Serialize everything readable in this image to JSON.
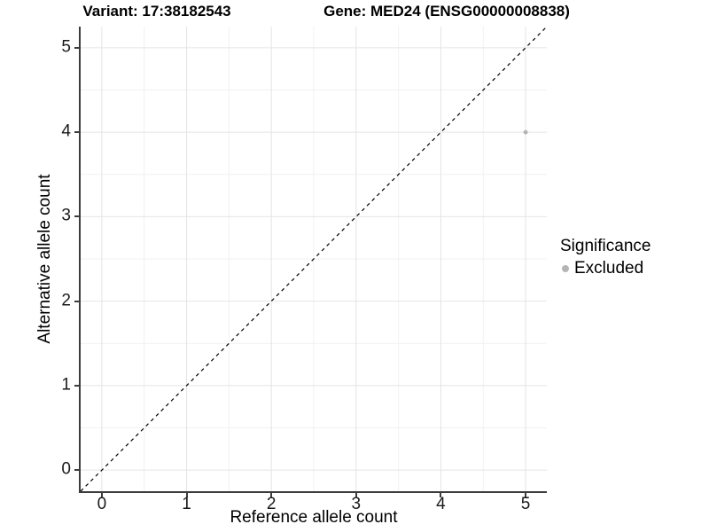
{
  "titles": {
    "variant": "Variant: 17:38182543",
    "gene": "Gene: MED24 (ENSG00000008838)"
  },
  "axes": {
    "x": {
      "label": "Reference allele count",
      "ticks": [
        0,
        1,
        2,
        3,
        4,
        5
      ],
      "range": [
        -0.25,
        5.25
      ]
    },
    "y": {
      "label": "Alternative allele count",
      "ticks": [
        0,
        1,
        2,
        3,
        4,
        5
      ],
      "range": [
        -0.25,
        5.25
      ]
    }
  },
  "legend": {
    "title": "Significance",
    "items": [
      {
        "label": "Excluded",
        "color": "#b5b5b5"
      }
    ]
  },
  "colors": {
    "grid_major": "#e4e4e4",
    "grid_minor": "#f1f1f1",
    "axis_line": "#3c3c3c",
    "reference_line": "#000000",
    "point_excluded": "#b5b5b5"
  },
  "chart_data": {
    "type": "scatter",
    "title": "Variant: 17:38182543   Gene: MED24 (ENSG00000008838)",
    "xlabel": "Reference allele count",
    "ylabel": "Alternative allele count",
    "xlim": [
      -0.25,
      5.25
    ],
    "ylim": [
      -0.25,
      5.25
    ],
    "x_ticks": [
      0,
      1,
      2,
      3,
      4,
      5
    ],
    "y_ticks": [
      0,
      1,
      2,
      3,
      4,
      5
    ],
    "grid": "major+minor",
    "legend_position": "right",
    "legend_title": "Significance",
    "series": [
      {
        "name": "Excluded",
        "color": "#b5b5b5",
        "point_radius": 2.5,
        "points": [
          {
            "x": 5,
            "y": 4
          }
        ]
      }
    ],
    "reference_line": {
      "type": "identity",
      "slope": 1,
      "intercept": 0,
      "style": "dashed",
      "color": "#000000"
    }
  }
}
